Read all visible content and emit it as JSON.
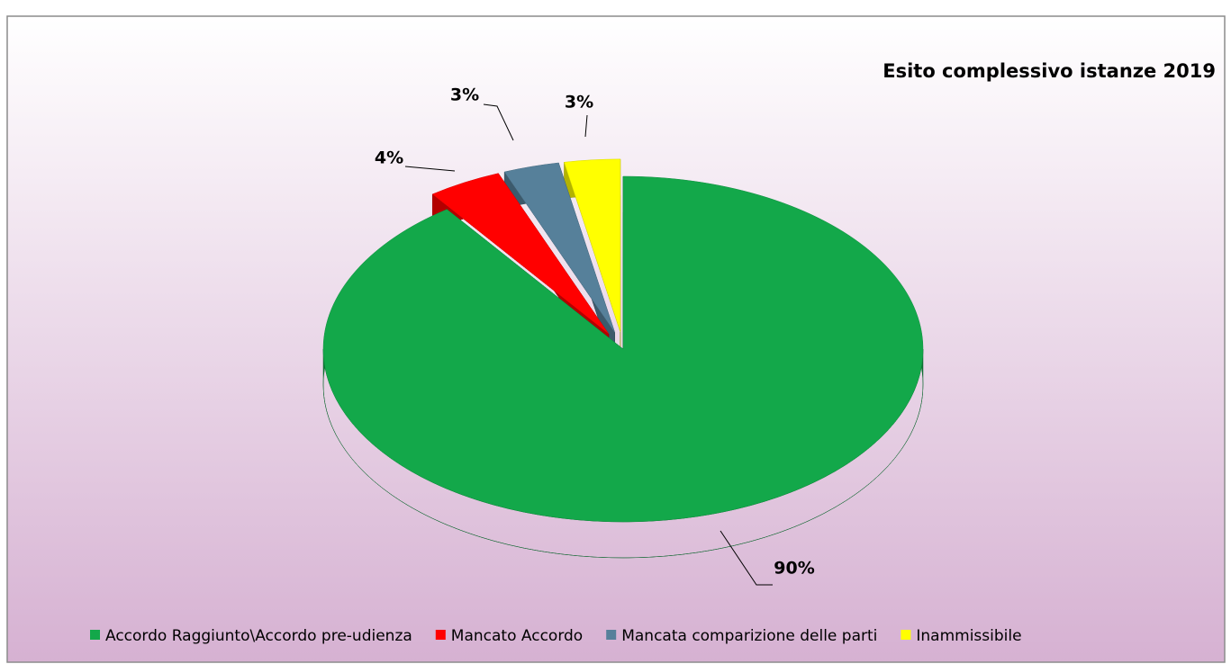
{
  "chart_data": {
    "type": "pie",
    "title": "Esito complessivo istanze 2019",
    "categories": [
      "Accordo Raggiunto\\Accordo pre-udienza",
      "Mancato Accordo",
      "Mancata comparizione delle parti",
      "Inammissibile"
    ],
    "values": [
      90,
      4,
      3,
      3
    ],
    "value_labels": [
      "90%",
      "4%",
      "3%",
      "3%"
    ],
    "colors": [
      "#13a84a",
      "#ff0000",
      "#56809a",
      "#ffff00"
    ],
    "legend": "bottom"
  }
}
